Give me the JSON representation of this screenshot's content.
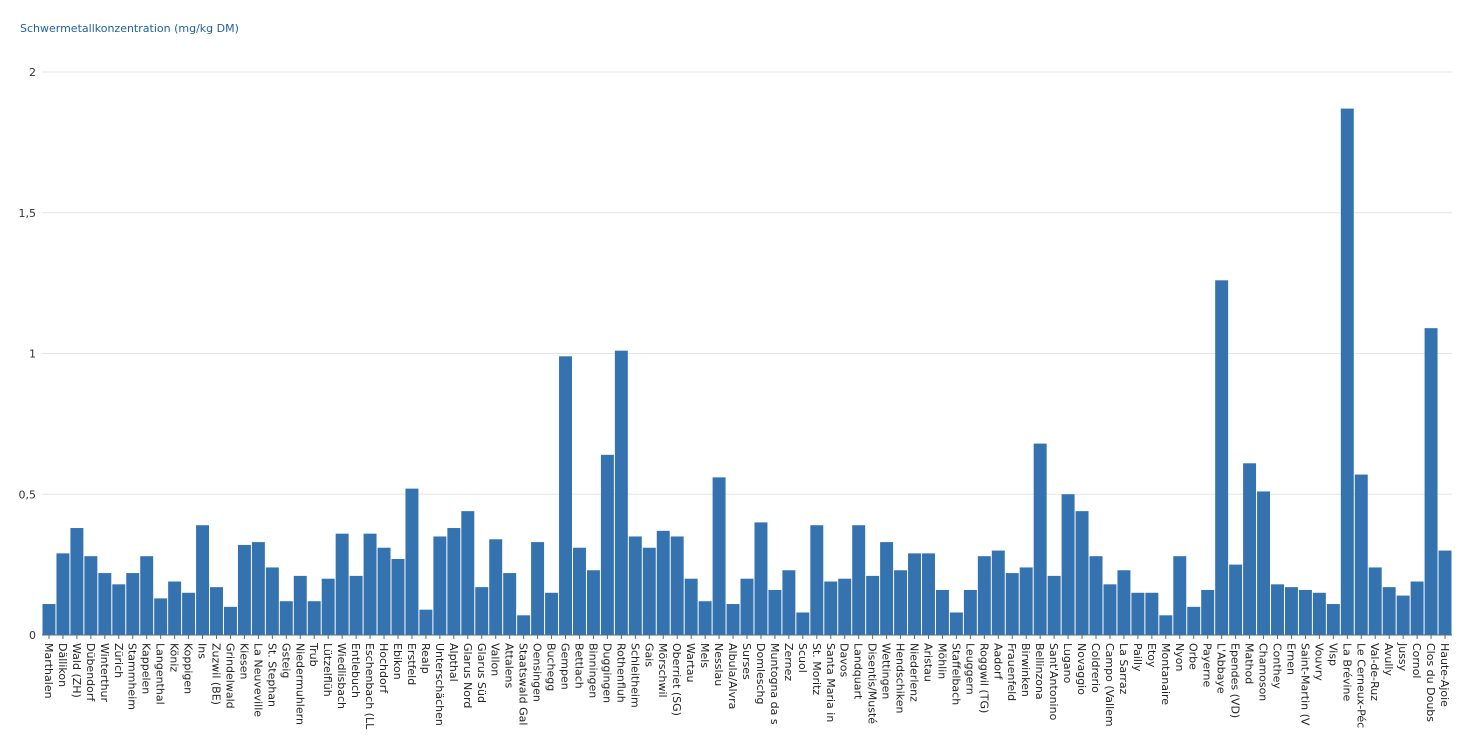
{
  "chart_data": {
    "type": "bar",
    "ylabel": "Schwermetallkonzentration (mg/kg DM)",
    "ylim": [
      0,
      2
    ],
    "yticks": [
      0,
      0.5,
      1,
      1.5,
      2
    ],
    "ytick_labels": [
      "0",
      "0,5",
      "1",
      "1,5",
      "2"
    ],
    "grid": true,
    "bar_color": "#3572b0",
    "categories": [
      "Marthalen",
      "Dällikon",
      "Wald (ZH)",
      "Dübendorf",
      "Winterthur",
      "Zürich",
      "Stammheim",
      "Kappelen",
      "Langenthal",
      "Köniz",
      "Koppigen",
      "Ins",
      "Zuzwil (BE)",
      "Grindelwald",
      "Kiesen",
      "La Neuveville",
      "St. Stephan",
      "Gsteig",
      "Niedermuhlern",
      "Trub",
      "Lützelflüh",
      "Wiedlisbach",
      "Entlebuch",
      "Eschenbach (LU)",
      "Hochdorf",
      "Ebikon",
      "Erstfeld",
      "Realp",
      "Unterschächen",
      "Alpthal",
      "Glarus Nord",
      "Glarus Süd",
      "Vallon",
      "Attalens",
      "Staatswald Galm",
      "Oensingen",
      "Buchegg",
      "Gempen",
      "Bettlach",
      "Binningen",
      "Duggingen",
      "Rothenfluh",
      "Schleitheim",
      "Gais",
      "Mörschwil",
      "Oberriet (SG)",
      "Wartau",
      "Mels",
      "Nesslau",
      "Albula/Alvra",
      "Surses",
      "Domleschg",
      "Muntogna da Schons",
      "Zernez",
      "Scuol",
      "St. Moritz",
      "Santa Maria in Calanca",
      "Davos",
      "Landquart",
      "Disentis/Mustér",
      "Wettingen",
      "Hendschiken",
      "Niederlenz",
      "Aristau",
      "Möhlin",
      "Staffelbach",
      "Leuggern",
      "Roggwil (TG)",
      "Aadorf",
      "Frauenfeld",
      "Birwinken",
      "Bellinzona",
      "Sant'Antonino",
      "Lugano",
      "Novaggio",
      "Coldrerio",
      "Campo (Vallemaggia)",
      "La Sarraz",
      "Pailly",
      "Etoy",
      "Montanaire",
      "Nyon",
      "Orbe",
      "Payerne",
      "L'Abbaye",
      "Ependes (VD)",
      "Mathod",
      "Chamoson",
      "Conthey",
      "Ernen",
      "Saint-Martin (VS)",
      "Vouvry",
      "Visp",
      "La Brévine",
      "Le Cerneux-Péquignot",
      "Val-de-Ruz",
      "Avully",
      "Jussy",
      "Cornol",
      "Clos du Doubs",
      "Haute-Ajoie"
    ],
    "tick_labels": [
      "Marthalen",
      "Dällikon",
      "Wald (ZH)",
      "Dübendorf",
      "Winterthur",
      "Zürich",
      "Stammheim",
      "Kappelen",
      "Langenthal",
      "Köniz",
      "Koppigen",
      "Ins",
      "Zuzwil (BE)",
      "Grindelwald",
      "Kiesen",
      "La Neuveville",
      "St. Stephan",
      "Gsteig",
      "Niedermuhlern",
      "Trub",
      "Lützelflüh",
      "Wiedlisbach",
      "Entlebuch",
      "Eschenbach (LL",
      "Hochdorf",
      "Ebikon",
      "Erstfeld",
      "Realp",
      "Unterschächen",
      "Alpthal",
      "Glarus Nord",
      "Glarus Süd",
      "Vallon",
      "Attalens",
      "Staatswald Gal",
      "Oensingen",
      "Buchegg",
      "Gempen",
      "Bettlach",
      "Binningen",
      "Duggingen",
      "Rothenfluh",
      "Schleitheim",
      "Gais",
      "Mörschwil",
      "Oberriet (SG)",
      "Wartau",
      "Mels",
      "Nesslau",
      "Albula/Alvra",
      "Surses",
      "Domleschg",
      "Muntogna da s",
      "Zernez",
      "Scuol",
      "St. Moritz",
      "Santa Maria in",
      "Davos",
      "Landquart",
      "Disentis/Musté",
      "Wettingen",
      "Hendschiken",
      "Niederlenz",
      "Aristau",
      "Möhlin",
      "Staffelbach",
      "Leuggern",
      "Roggwil (TG)",
      "Aadorf",
      "Frauenfeld",
      "Birwinken",
      "Bellinzona",
      "Sant'Antonino",
      "Lugano",
      "Novaggio",
      "Coldrerio",
      "Campo (Vallem",
      "La Sarraz",
      "Pailly",
      "Etoy",
      "Montanaire",
      "Nyon",
      "Orbe",
      "Payerne",
      "L'Abbaye",
      "Ependes (VD)",
      "Mathod",
      "Chamoson",
      "Conthey",
      "Ernen",
      "Saint-Martin (V",
      "Vouvry",
      "Visp",
      "La Brévine",
      "Le Cerneux-Péc",
      "Val-de-Ruz",
      "Avully",
      "Jussy",
      "Cornol",
      "Clos du Doubs",
      "Haute-Ajoie"
    ],
    "values": [
      0.11,
      0.29,
      0.38,
      0.28,
      0.22,
      0.18,
      0.22,
      0.28,
      0.13,
      0.19,
      0.15,
      0.39,
      0.17,
      0.1,
      0.32,
      0.33,
      0.24,
      0.12,
      0.21,
      0.12,
      0.2,
      0.36,
      0.21,
      0.36,
      0.31,
      0.27,
      0.52,
      0.09,
      0.35,
      0.38,
      0.44,
      0.17,
      0.34,
      0.22,
      0.07,
      0.33,
      0.15,
      0.99,
      0.31,
      0.23,
      0.64,
      1.01,
      0.35,
      0.31,
      0.37,
      0.35,
      0.2,
      0.12,
      0.56,
      0.11,
      0.2,
      0.4,
      0.16,
      0.23,
      0.08,
      0.39,
      0.19,
      0.2,
      0.39,
      0.21,
      0.33,
      0.23,
      0.29,
      0.29,
      0.16,
      0.08,
      0.16,
      0.28,
      0.3,
      0.22,
      0.24,
      0.68,
      0.21,
      0.5,
      0.44,
      0.28,
      0.18,
      0.23,
      0.15,
      0.15,
      0.07,
      0.28,
      0.1,
      0.16,
      1.26,
      0.25,
      0.61,
      0.51,
      0.18,
      0.17,
      0.16,
      0.15,
      0.11,
      1.87,
      0.57,
      0.24,
      0.17,
      0.14,
      0.19,
      1.09,
      0.3
    ]
  }
}
